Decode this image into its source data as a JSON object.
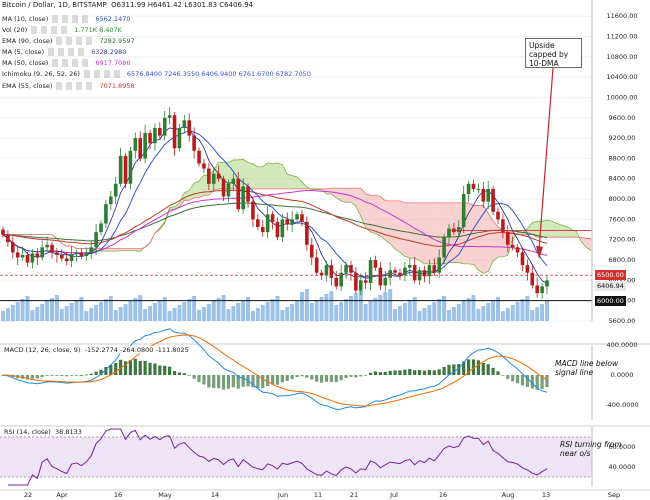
{
  "header": {
    "symbol": "Bitcoin / Dollar, 1D, BITSTAMP",
    "ohlc": "O6311.99  H6461.42  L6301.83  C6406.94"
  },
  "overlays": [
    {
      "name": "MA (10, close)",
      "value": "6562.1470",
      "color": "#3355cc"
    },
    {
      "name": "Vol (20)",
      "value": "1.771K  8.407K",
      "color": "#2a8a2a"
    },
    {
      "name": "EMA (90, close)",
      "value": "7282.9597",
      "color": "#2d6b2d"
    },
    {
      "name": "MA (5, close)",
      "value": "6328.2980",
      "color": "#3a3aaa"
    },
    {
      "name": "MA (50, close)",
      "value": "6917.7086",
      "color": "#cc33cc"
    },
    {
      "name": "Ichimoku (9, 26, 52, 26)",
      "value": "6576.8400  7246.3550  6406.9400  6761.6700  6782.7050",
      "color": "#3355cc"
    },
    {
      "name": "EMA (55, close)",
      "value": "7071.8958",
      "color": "#cc3333"
    }
  ],
  "macd_legend": {
    "name": "MACD (12, 26, close, 9)",
    "value": "-152.2774  -264.0800  -111.8025"
  },
  "rsi_legend": {
    "name": "RSI (14, close)",
    "value": "38.8133"
  },
  "annotations": {
    "callout": "Upside capped by 10-DMA",
    "macd_note": "MACD line below signal line",
    "rsi_note": "RSI turning from near o/s"
  },
  "price_tags": [
    {
      "text": "6500.00",
      "bg": "#d32f2f",
      "fg": "#ffffff"
    },
    {
      "text": "6406.94",
      "bg": "#e8e8e8",
      "fg": "#111111"
    },
    {
      "text": "6000.00",
      "bg": "#111111",
      "fg": "#ffffff"
    }
  ],
  "colors": {
    "up": "#2e7d32",
    "down": "#b71c1c",
    "cloud_bull": "#9ccc65",
    "cloud_bear": "#ef9a9a",
    "volume": "#4a90d9",
    "macd_line": "#1e88e5",
    "macd_signal": "#ef6c00",
    "rsi": "#7b1fa2",
    "rsi_band": "#e1d3f0"
  },
  "chart_data": {
    "type": "candlestick",
    "title": "Bitcoin / Dollar, 1D, BITSTAMP",
    "ylim": [
      5600,
      11800
    ],
    "y_ticks": [
      "11600.00",
      "11200.00",
      "10800.00",
      "10400.00",
      "10000.00",
      "9600.00",
      "9200.00",
      "8800.00",
      "8400.00",
      "8000.00",
      "7600.00",
      "7200.00",
      "6800.00",
      "6400.00",
      "6000.00",
      "5600.00"
    ],
    "x_ticks": [
      "22",
      "Apr",
      "16",
      "May",
      "14",
      "Jun",
      "11",
      "21",
      "Jul",
      "16",
      "Aug",
      "13",
      "Sep"
    ],
    "close_series": [
      7300,
      7150,
      6950,
      6850,
      6900,
      6750,
      6930,
      6850,
      7050,
      7100,
      6950,
      6900,
      6830,
      6780,
      6920,
      6940,
      6880,
      6940,
      7050,
      7350,
      7520,
      7900,
      8050,
      8300,
      8850,
      8300,
      8950,
      9200,
      8800,
      9300,
      9100,
      9400,
      9250,
      9600,
      9650,
      9000,
      9400,
      9550,
      9250,
      8950,
      8700,
      8600,
      8300,
      8500,
      8400,
      8050,
      8300,
      8400,
      7800,
      8250,
      7950,
      7600,
      7450,
      7350,
      7700,
      7550,
      7250,
      7600,
      7500,
      7600,
      7700,
      7550,
      7100,
      6850,
      6550,
      6500,
      6700,
      6450,
      6280,
      6550,
      6700,
      6550,
      6200,
      6400,
      6350,
      6800,
      6650,
      6300,
      6450,
      6600,
      6550,
      6500,
      6650,
      6700,
      6400,
      6600,
      6480,
      6700,
      6550,
      6850,
      7250,
      7420,
      7350,
      7450,
      8100,
      8300,
      8200,
      8200,
      7950,
      8200,
      7750,
      7600,
      7350,
      7100,
      7050,
      6950,
      6700,
      6550,
      6300,
      6150,
      6280,
      6400
    ],
    "upper_line": 6500,
    "support_line": 6000,
    "macd": {
      "ylim": [
        -600,
        400
      ],
      "y_ticks": [
        "400.0000",
        "0.0000",
        "-400.0000"
      ]
    },
    "rsi": {
      "ylim": [
        20,
        80
      ],
      "y_ticks": [
        "60.0000",
        "40.0000"
      ],
      "band": [
        30,
        70
      ]
    }
  }
}
